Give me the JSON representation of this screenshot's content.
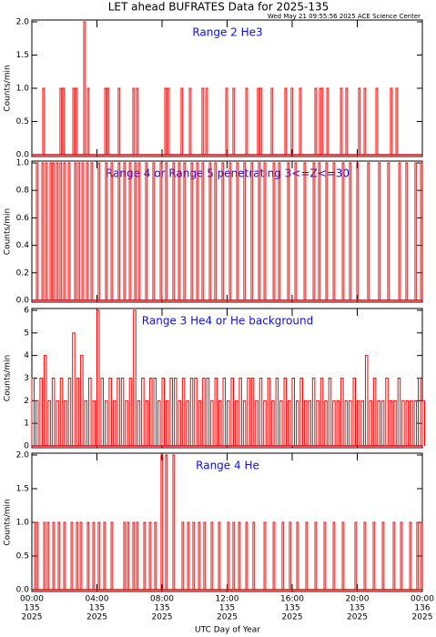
{
  "header": {
    "title": "LET ahead BUFRATES Data for 2025-135",
    "subtitle": "Wed May 21 09:55:56 2025 ACE Science Center"
  },
  "chart_data": [
    {
      "type": "line",
      "title": "Range 2 He3",
      "ylabel": "Counts/min",
      "color": "#ff0000",
      "xlim": [
        0,
        24
      ],
      "ylim": [
        0,
        2
      ],
      "yticks": [
        {
          "value": 0,
          "label": "0.0"
        },
        {
          "value": 0.5,
          "label": "0.5"
        },
        {
          "value": 1,
          "label": "1.0"
        },
        {
          "value": 1.5,
          "label": "1.5"
        },
        {
          "value": 2,
          "label": "2.0"
        }
      ],
      "x": [
        0.67,
        1.73,
        1.9,
        2.52,
        2.69,
        3.19,
        3.41,
        4.48,
        4.64,
        5.31,
        6.21,
        6.43,
        8.17,
        8.34,
        9.17,
        9.68,
        10.46,
        10.69,
        11.92,
        12.36,
        13.15,
        13.87,
        14.04,
        14.71,
        15.55,
        15.94,
        16.45,
        17.4,
        17.68,
        17.79,
        18.13,
        18.97,
        19.3,
        20.08,
        20.42,
        21.15,
        22.04,
        22.38
      ],
      "values": [
        1,
        1,
        1,
        1,
        1,
        2,
        1,
        1,
        1,
        1,
        1,
        1,
        1,
        1,
        1,
        1,
        1,
        1,
        1,
        1,
        1,
        1,
        1,
        1,
        1,
        1,
        1,
        1,
        1,
        1,
        1,
        1,
        1,
        1,
        1,
        1,
        1,
        1
      ]
    },
    {
      "type": "line",
      "title": "Range 4 or Range 5 penetrating 3<=Z<=30",
      "ylabel": "Counts/min",
      "color": "#ff0000",
      "xlim": [
        0,
        24
      ],
      "ylim": [
        0,
        1
      ],
      "yticks": [
        {
          "value": 0,
          "label": "0.0"
        },
        {
          "value": 0.2,
          "label": "0.2"
        },
        {
          "value": 0.4,
          "label": "0.4"
        },
        {
          "value": 0.6,
          "label": "0.6"
        },
        {
          "value": 0.8,
          "label": "0.8"
        },
        {
          "value": 1,
          "label": "1.0"
        }
      ],
      "x": [
        0.28,
        0.62,
        0.84,
        1.12,
        1.29,
        1.51,
        1.73,
        1.96,
        2.24,
        2.63,
        2.85,
        3.08,
        3.36,
        3.64,
        4.08,
        4.53,
        4.87,
        5.31,
        5.65,
        5.99,
        6.32,
        6.55,
        6.99,
        7.44,
        7.89,
        8.22,
        8.67,
        9.01,
        9.34,
        9.79,
        10.13,
        10.46,
        10.91,
        11.24,
        11.69,
        12.14,
        12.59,
        13.03,
        13.48,
        13.93,
        14.27,
        14.83,
        15.16,
        15.72,
        16.17,
        16.73,
        17.29,
        17.62,
        18.07,
        18.52,
        19.08,
        19.52,
        19.97,
        20.64,
        21.31,
        21.87,
        22.55,
        22.99,
        23.55,
        23.89
      ],
      "values": [
        1,
        1,
        1,
        1,
        1,
        1,
        1,
        1,
        1,
        1,
        1,
        1,
        1,
        1,
        1,
        1,
        1,
        1,
        1,
        1,
        1,
        1,
        1,
        1,
        1,
        1,
        1,
        1,
        1,
        1,
        1,
        1,
        1,
        1,
        1,
        1,
        1,
        1,
        1,
        1,
        1,
        1,
        1,
        1,
        1,
        1,
        1,
        1,
        1,
        1,
        1,
        1,
        1,
        1,
        1,
        1,
        1,
        1,
        1,
        1
      ]
    },
    {
      "type": "line",
      "title": "Range 3 He4 or He background",
      "ylabel": "Counts/min",
      "color": "#ff0000",
      "xlim": [
        0,
        24
      ],
      "ylim": [
        0,
        6
      ],
      "yticks": [
        0,
        1,
        2,
        3,
        4,
        5,
        6
      ],
      "x": [
        0,
        0.25,
        0.5,
        0.75,
        1,
        1.25,
        1.5,
        1.75,
        2,
        2.25,
        2.5,
        2.75,
        3,
        3.25,
        3.5,
        3.75,
        4,
        4.25,
        4.5,
        4.75,
        5,
        5.25,
        5.5,
        5.75,
        6,
        6.25,
        6.5,
        6.75,
        7,
        7.25,
        7.5,
        7.75,
        8,
        8.25,
        8.5,
        8.75,
        9,
        9.25,
        9.5,
        9.75,
        10,
        10.25,
        10.5,
        10.75,
        11,
        11.25,
        11.5,
        11.75,
        12,
        12.25,
        12.5,
        12.75,
        13,
        13.25,
        13.5,
        13.75,
        14,
        14.25,
        14.5,
        14.75,
        15,
        15.25,
        15.5,
        15.75,
        16,
        16.25,
        16.5,
        16.75,
        17,
        17.25,
        17.5,
        17.75,
        18,
        18.25,
        18.5,
        18.75,
        19,
        19.25,
        19.5,
        19.75,
        20,
        20.25,
        20.5,
        20.75,
        21,
        21.25,
        21.5,
        21.75,
        22,
        22.25,
        22.5,
        22.75,
        23,
        23.25,
        23.5,
        23.75,
        24
      ],
      "values": [
        3,
        2,
        3,
        4,
        2,
        3,
        2,
        3,
        2,
        3,
        5,
        3,
        4,
        2,
        3,
        2,
        6,
        3,
        2,
        3,
        2,
        3,
        3,
        2,
        3,
        6,
        2,
        3,
        2,
        3,
        3,
        2,
        3,
        2,
        3,
        3,
        2,
        3,
        2,
        3,
        3,
        2,
        3,
        3,
        2,
        3,
        2,
        3,
        2,
        3,
        2,
        3,
        2,
        3,
        3,
        2,
        3,
        2,
        3,
        2,
        3,
        2,
        3,
        2,
        3,
        2,
        3,
        2,
        2,
        3,
        2,
        3,
        2,
        3,
        2,
        2,
        3,
        2,
        2,
        3,
        2,
        2,
        4,
        2,
        3,
        2,
        2,
        3,
        2,
        2,
        3,
        2,
        2,
        2,
        2,
        3,
        2
      ]
    },
    {
      "type": "line",
      "title": "Range 4 He",
      "ylabel": "Counts/min",
      "xlabel": "UTC Day of Year",
      "color": "#ff0000",
      "xlim": [
        0,
        24
      ],
      "ylim": [
        0,
        2
      ],
      "yticks": [
        {
          "value": 0,
          "label": "0.0"
        },
        {
          "value": 0.5,
          "label": "0.5"
        },
        {
          "value": 1,
          "label": "1.0"
        },
        {
          "value": 1.5,
          "label": "1.5"
        },
        {
          "value": 2,
          "label": "2.0"
        }
      ],
      "xticks": [
        {
          "value": 0,
          "label": "00:00"
        },
        {
          "value": 4,
          "label": "04:00"
        },
        {
          "value": 8,
          "label": "08:00"
        },
        {
          "value": 12,
          "label": "12:00"
        },
        {
          "value": 16,
          "label": "16:00"
        },
        {
          "value": 20,
          "label": "20:00"
        },
        {
          "value": 24,
          "label": "00:00"
        }
      ],
      "xtick_days": [
        "135",
        "135",
        "135",
        "135",
        "135",
        "135",
        "136"
      ],
      "xtick_years": [
        "2025",
        "2025",
        "2025",
        "2025",
        "2025",
        "2025",
        "2025"
      ],
      "x": [
        0.17,
        0.28,
        0.73,
        0.95,
        1.29,
        1.62,
        1.96,
        2.41,
        2.74,
        2.97,
        3.41,
        3.75,
        4.08,
        4.42,
        4.87,
        5.65,
        5.87,
        6.21,
        6.43,
        6.88,
        7.22,
        7.55,
        7.94,
        8.22,
        8.67,
        9.23,
        9.57,
        9.9,
        10.24,
        10.57,
        11.02,
        11.47,
        12.03,
        12.36,
        12.7,
        13.15,
        13.59,
        14.27,
        14.83,
        15.38,
        15.83,
        16.28,
        16.84,
        17.4,
        17.96,
        18.52,
        19.08,
        19.86,
        20.42,
        20.98,
        21.54,
        22.21,
        22.66,
        23.22,
        23.66,
        23.89
      ],
      "values": [
        1,
        1,
        1,
        1,
        1,
        1,
        1,
        1,
        1,
        1,
        1,
        1,
        1,
        1,
        1,
        1,
        1,
        1,
        1,
        1,
        1,
        1,
        2,
        2,
        2,
        1,
        1,
        1,
        1,
        1,
        1,
        1,
        1,
        1,
        1,
        1,
        1,
        1,
        1,
        1,
        1,
        1,
        1,
        1,
        1,
        1,
        1,
        1,
        1,
        1,
        1,
        1,
        1,
        1,
        1,
        1
      ]
    }
  ]
}
